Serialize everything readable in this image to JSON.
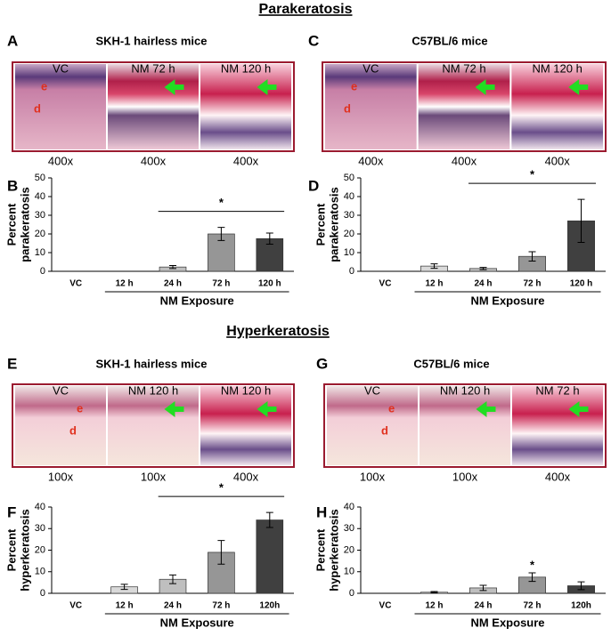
{
  "sections": [
    "Parakeratosis",
    "Hyperkeratosis"
  ],
  "panels": [
    {
      "letter": "A",
      "title": "SKH-1 hairless mice",
      "images": [
        {
          "label": "VC",
          "magnification": "400x",
          "markers": [
            "e",
            "d"
          ]
        },
        {
          "label": "NM 72 h",
          "magnification": "400x"
        },
        {
          "label": "NM 120 h",
          "magnification": "400x"
        }
      ]
    },
    {
      "letter": "C",
      "title": "C57BL/6 mice",
      "images": [
        {
          "label": "VC",
          "magnification": "400x",
          "markers": [
            "e",
            "d"
          ]
        },
        {
          "label": "NM 72 h",
          "magnification": "400x"
        },
        {
          "label": "NM 120 h",
          "magnification": "400x"
        }
      ]
    },
    {
      "letter": "E",
      "title": "SKH-1 hairless mice",
      "images": [
        {
          "label": "VC",
          "magnification": "100x",
          "markers": [
            "e",
            "d"
          ]
        },
        {
          "label": "NM 120 h",
          "magnification": "100x"
        },
        {
          "label": "NM 120 h",
          "magnification": "400x"
        }
      ]
    },
    {
      "letter": "G",
      "title": "C57BL/6 mice",
      "images": [
        {
          "label": "VC",
          "magnification": "100x",
          "markers": [
            "e",
            "d"
          ]
        },
        {
          "label": "NM 120 h",
          "magnification": "100x"
        },
        {
          "label": "NM 72 h",
          "magnification": "400x"
        }
      ]
    }
  ],
  "chart_data": [
    {
      "type": "bar",
      "letter": "B",
      "ylabel": [
        "Percent",
        "parakeratosis"
      ],
      "xlabel": "NM Exposure",
      "categories": [
        "VC",
        "12 h",
        "24 h",
        "72 h",
        "120 h"
      ],
      "values": [
        0,
        0,
        2.3,
        20,
        17.5
      ],
      "errors": [
        0,
        0,
        0.8,
        3.5,
        3
      ],
      "colors": [
        "#ffffff",
        "#d9d9d9",
        "#bfbfbf",
        "#969696",
        "#404040"
      ],
      "ylim": [
        0,
        50
      ],
      "yticks": [
        0,
        10,
        20,
        30,
        40,
        50
      ],
      "significance": {
        "label": "*",
        "span": [
          "24 h",
          "120 h"
        ]
      }
    },
    {
      "type": "bar",
      "letter": "D",
      "ylabel": [
        "Percent",
        "parakeratosis"
      ],
      "xlabel": "NM Exposure",
      "categories": [
        "VC",
        "12 h",
        "24 h",
        "72 h",
        "120 h"
      ],
      "values": [
        0,
        2.8,
        1.5,
        8,
        27
      ],
      "errors": [
        0,
        1.2,
        0.6,
        2.5,
        11.5
      ],
      "colors": [
        "#ffffff",
        "#d9d9d9",
        "#bfbfbf",
        "#969696",
        "#404040"
      ],
      "ylim": [
        0,
        50
      ],
      "yticks": [
        0,
        10,
        20,
        30,
        40,
        50
      ],
      "significance": {
        "label": "*",
        "span": [
          "24 h",
          "120 h"
        ]
      }
    },
    {
      "type": "bar",
      "letter": "F",
      "ylabel": [
        "Percent",
        "hyperkeratosis"
      ],
      "xlabel": "NM Exposure",
      "categories": [
        "VC",
        "12 h",
        "24 h",
        "72 h",
        "120h"
      ],
      "values": [
        0,
        3,
        6.5,
        19,
        34
      ],
      "errors": [
        0,
        1.2,
        2,
        5.5,
        3.5
      ],
      "colors": [
        "#ffffff",
        "#d9d9d9",
        "#bfbfbf",
        "#969696",
        "#404040"
      ],
      "ylim": [
        0,
        40
      ],
      "yticks": [
        0,
        10,
        20,
        30,
        40
      ],
      "significance": {
        "label": "*",
        "span": [
          "24 h",
          "120h"
        ]
      }
    },
    {
      "type": "bar",
      "letter": "H",
      "ylabel": [
        "Percent",
        "hyperkeratosis"
      ],
      "xlabel": "NM Exposure",
      "categories": [
        "VC",
        "12 h",
        "24 h",
        "72 h",
        "120h"
      ],
      "values": [
        0,
        0.5,
        2.5,
        7.5,
        3.5
      ],
      "errors": [
        0,
        0.3,
        1.2,
        2,
        1.8
      ],
      "colors": [
        "#ffffff",
        "#d9d9d9",
        "#bfbfbf",
        "#969696",
        "#404040"
      ],
      "ylim": [
        0,
        40
      ],
      "yticks": [
        0,
        10,
        20,
        30,
        40
      ],
      "significance": {
        "label": "*",
        "span": [
          "72 h"
        ]
      }
    }
  ]
}
